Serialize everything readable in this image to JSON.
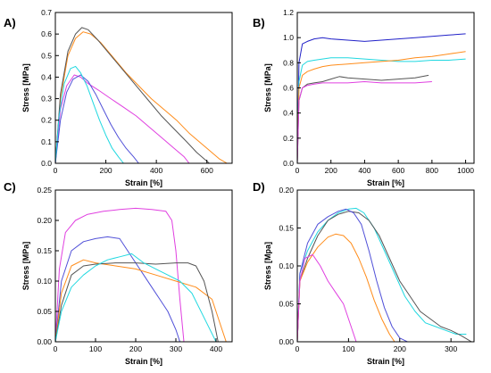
{
  "chart_data": [
    {
      "panel": "A)",
      "type": "line",
      "xlabel": "Strain [%]",
      "ylabel": "Stress [MPa]",
      "xlim": [
        0,
        700
      ],
      "ylim": [
        0,
        0.7
      ],
      "xticks": [
        0,
        200,
        400,
        600
      ],
      "yticks": [
        0.0,
        0.1,
        0.2,
        0.3,
        0.4,
        0.5,
        0.6,
        0.7
      ],
      "xtick_labels": [
        "0",
        "200",
        "400",
        "600"
      ],
      "ytick_labels": [
        "0.0",
        "0.1",
        "0.2",
        "0.3",
        "0.4",
        "0.5",
        "0.6",
        "0.7"
      ],
      "series": [
        {
          "color": "#ff8c1a",
          "x": [
            0,
            20,
            50,
            80,
            110,
            140,
            180,
            230,
            280,
            330,
            380,
            430,
            480,
            530,
            570,
            610,
            650,
            680
          ],
          "y": [
            0,
            0.3,
            0.5,
            0.58,
            0.61,
            0.6,
            0.56,
            0.49,
            0.42,
            0.36,
            0.3,
            0.25,
            0.2,
            0.14,
            0.1,
            0.06,
            0.02,
            0
          ]
        },
        {
          "color": "#555555",
          "x": [
            0,
            20,
            50,
            80,
            105,
            130,
            170,
            220,
            270,
            320,
            370,
            420,
            470,
            520,
            560,
            590,
            610
          ],
          "y": [
            0,
            0.32,
            0.52,
            0.6,
            0.63,
            0.62,
            0.57,
            0.5,
            0.43,
            0.36,
            0.29,
            0.22,
            0.16,
            0.1,
            0.05,
            0.02,
            0
          ]
        },
        {
          "color": "#e040e0",
          "x": [
            0,
            20,
            45,
            75,
            100,
            130,
            170,
            220,
            270,
            320,
            370,
            420,
            470,
            510,
            530
          ],
          "y": [
            0,
            0.25,
            0.36,
            0.41,
            0.4,
            0.37,
            0.34,
            0.3,
            0.26,
            0.22,
            0.17,
            0.12,
            0.07,
            0.03,
            0
          ]
        },
        {
          "color": "#5050d8",
          "x": [
            0,
            20,
            45,
            70,
            100,
            130,
            160,
            190,
            220,
            250,
            280,
            310,
            330
          ],
          "y": [
            0,
            0.2,
            0.33,
            0.39,
            0.41,
            0.38,
            0.32,
            0.25,
            0.18,
            0.12,
            0.07,
            0.03,
            0
          ]
        },
        {
          "color": "#20d8e0",
          "x": [
            0,
            15,
            35,
            60,
            80,
            100,
            125,
            150,
            175,
            200,
            225,
            250,
            270
          ],
          "y": [
            0,
            0.22,
            0.37,
            0.44,
            0.45,
            0.42,
            0.36,
            0.28,
            0.2,
            0.13,
            0.07,
            0.03,
            0
          ]
        }
      ]
    },
    {
      "panel": "B)",
      "type": "line",
      "xlabel": "Strain [%]",
      "ylabel": "Stress [MPa]",
      "xlim": [
        0,
        1050
      ],
      "ylim": [
        0,
        1.2
      ],
      "xticks": [
        0,
        200,
        400,
        600,
        800,
        1000
      ],
      "yticks": [
        0.0,
        0.2,
        0.4,
        0.6,
        0.8,
        1.0,
        1.2
      ],
      "xtick_labels": [
        "0",
        "200",
        "400",
        "600",
        "800",
        "1000"
      ],
      "ytick_labels": [
        "0.0",
        "0.2",
        "0.4",
        "0.6",
        "0.8",
        "1.0",
        "1.2"
      ],
      "series": [
        {
          "color": "#2020c8",
          "x": [
            0,
            10,
            30,
            60,
            100,
            150,
            200,
            300,
            400,
            500,
            600,
            700,
            800,
            900,
            1000
          ],
          "y": [
            0,
            0.8,
            0.95,
            0.97,
            0.99,
            1.0,
            0.99,
            0.98,
            0.97,
            0.98,
            0.99,
            1.0,
            1.01,
            1.02,
            1.03
          ]
        },
        {
          "color": "#20d8e0",
          "x": [
            0,
            10,
            30,
            60,
            100,
            150,
            200,
            300,
            400,
            500,
            600,
            700,
            800,
            900,
            1000
          ],
          "y": [
            0,
            0.65,
            0.78,
            0.81,
            0.82,
            0.83,
            0.84,
            0.84,
            0.83,
            0.82,
            0.81,
            0.81,
            0.82,
            0.82,
            0.83
          ]
        },
        {
          "color": "#ff8c1a",
          "x": [
            0,
            10,
            30,
            60,
            100,
            150,
            200,
            300,
            400,
            500,
            600,
            700,
            800,
            900,
            1000
          ],
          "y": [
            0,
            0.6,
            0.7,
            0.73,
            0.75,
            0.77,
            0.78,
            0.79,
            0.8,
            0.81,
            0.82,
            0.84,
            0.85,
            0.87,
            0.89
          ]
        },
        {
          "color": "#555555",
          "x": [
            0,
            10,
            30,
            60,
            100,
            150,
            200,
            250,
            300,
            400,
            500,
            600,
            700,
            780
          ],
          "y": [
            0,
            0.5,
            0.6,
            0.63,
            0.64,
            0.65,
            0.67,
            0.69,
            0.68,
            0.67,
            0.66,
            0.67,
            0.68,
            0.7
          ]
        },
        {
          "color": "#e040e0",
          "x": [
            0,
            10,
            30,
            60,
            100,
            150,
            200,
            300,
            400,
            500,
            600,
            700,
            800
          ],
          "y": [
            0,
            0.5,
            0.6,
            0.62,
            0.63,
            0.64,
            0.64,
            0.64,
            0.65,
            0.64,
            0.64,
            0.64,
            0.65
          ]
        }
      ]
    },
    {
      "panel": "C)",
      "type": "line",
      "xlabel": "Strain [%]",
      "ylabel": "Stress [MPa]",
      "xlim": [
        0,
        440
      ],
      "ylim": [
        0,
        0.25
      ],
      "xticks": [
        0,
        100,
        200,
        300,
        400
      ],
      "yticks": [
        0.0,
        0.05,
        0.1,
        0.15,
        0.2,
        0.25
      ],
      "xtick_labels": [
        "0",
        "100",
        "200",
        "300",
        "400"
      ],
      "ytick_labels": [
        "0.00",
        "0.05",
        "0.10",
        "0.15",
        "0.20",
        "0.25"
      ],
      "series": [
        {
          "color": "#e040e0",
          "x": [
            0,
            10,
            25,
            50,
            80,
            120,
            160,
            200,
            240,
            275,
            290,
            300,
            310,
            320
          ],
          "y": [
            0,
            0.12,
            0.18,
            0.2,
            0.21,
            0.215,
            0.218,
            0.22,
            0.218,
            0.215,
            0.2,
            0.15,
            0.07,
            0
          ]
        },
        {
          "color": "#5050d8",
          "x": [
            0,
            15,
            40,
            70,
            100,
            130,
            160,
            180,
            200,
            220,
            240,
            260,
            280,
            300,
            310
          ],
          "y": [
            0,
            0.1,
            0.15,
            0.165,
            0.17,
            0.173,
            0.17,
            0.15,
            0.13,
            0.11,
            0.09,
            0.07,
            0.05,
            0.02,
            0
          ]
        },
        {
          "color": "#ff8c1a",
          "x": [
            0,
            15,
            40,
            70,
            100,
            150,
            200,
            250,
            300,
            350,
            390,
            410,
            425
          ],
          "y": [
            0,
            0.08,
            0.125,
            0.135,
            0.13,
            0.125,
            0.12,
            0.11,
            0.1,
            0.09,
            0.07,
            0.03,
            0
          ]
        },
        {
          "color": "#555555",
          "x": [
            0,
            15,
            40,
            70,
            100,
            150,
            200,
            250,
            300,
            330,
            350,
            370,
            390,
            405
          ],
          "y": [
            0,
            0.06,
            0.11,
            0.125,
            0.128,
            0.13,
            0.13,
            0.128,
            0.13,
            0.13,
            0.125,
            0.1,
            0.05,
            0
          ]
        },
        {
          "color": "#20d8e0",
          "x": [
            0,
            15,
            40,
            70,
            100,
            130,
            160,
            190,
            220,
            250,
            280,
            310,
            340,
            370,
            400
          ],
          "y": [
            0,
            0.05,
            0.09,
            0.11,
            0.125,
            0.135,
            0.14,
            0.145,
            0.13,
            0.12,
            0.11,
            0.1,
            0.08,
            0.04,
            0
          ]
        }
      ]
    },
    {
      "panel": "D)",
      "type": "line",
      "xlabel": "Strain [%]",
      "ylabel": "Stress [Mpa]",
      "xlim": [
        0,
        345
      ],
      "ylim": [
        0,
        0.2
      ],
      "xticks": [
        0,
        100,
        200,
        300
      ],
      "yticks": [
        0.0,
        0.05,
        0.1,
        0.15,
        0.2
      ],
      "xtick_labels": [
        "0",
        "100",
        "200",
        "300"
      ],
      "ytick_labels": [
        "0.00",
        "0.05",
        "0.10",
        "0.15",
        "0.20"
      ],
      "series": [
        {
          "color": "#20d8e0",
          "x": [
            0,
            5,
            20,
            40,
            60,
            80,
            100,
            115,
            130,
            150,
            170,
            190,
            210,
            230,
            250,
            270,
            290,
            310,
            330
          ],
          "y": [
            0,
            0.09,
            0.12,
            0.145,
            0.16,
            0.17,
            0.175,
            0.176,
            0.17,
            0.15,
            0.12,
            0.09,
            0.06,
            0.04,
            0.025,
            0.02,
            0.015,
            0.01,
            0.01
          ]
        },
        {
          "color": "#555555",
          "x": [
            0,
            5,
            20,
            40,
            60,
            80,
            100,
            120,
            140,
            160,
            180,
            200,
            220,
            240,
            260,
            280,
            300,
            320,
            340
          ],
          "y": [
            0,
            0.08,
            0.11,
            0.14,
            0.16,
            0.168,
            0.172,
            0.17,
            0.16,
            0.14,
            0.11,
            0.08,
            0.06,
            0.04,
            0.03,
            0.02,
            0.015,
            0.008,
            0
          ]
        },
        {
          "color": "#5050d8",
          "x": [
            0,
            5,
            20,
            40,
            60,
            80,
            95,
            110,
            125,
            140,
            155,
            170,
            185,
            200,
            215
          ],
          "y": [
            0,
            0.09,
            0.13,
            0.155,
            0.165,
            0.172,
            0.175,
            0.17,
            0.155,
            0.12,
            0.08,
            0.045,
            0.02,
            0.005,
            0
          ]
        },
        {
          "color": "#ff8c1a",
          "x": [
            0,
            5,
            20,
            40,
            60,
            75,
            90,
            105,
            120,
            135,
            150,
            165,
            180,
            190
          ],
          "y": [
            0,
            0.08,
            0.105,
            0.125,
            0.138,
            0.142,
            0.14,
            0.13,
            0.11,
            0.085,
            0.055,
            0.03,
            0.01,
            0
          ]
        },
        {
          "color": "#e040e0",
          "x": [
            0,
            5,
            15,
            30,
            45,
            60,
            75,
            90,
            105,
            115
          ],
          "y": [
            0,
            0.08,
            0.11,
            0.115,
            0.1,
            0.08,
            0.065,
            0.05,
            0.02,
            0
          ]
        }
      ]
    }
  ]
}
